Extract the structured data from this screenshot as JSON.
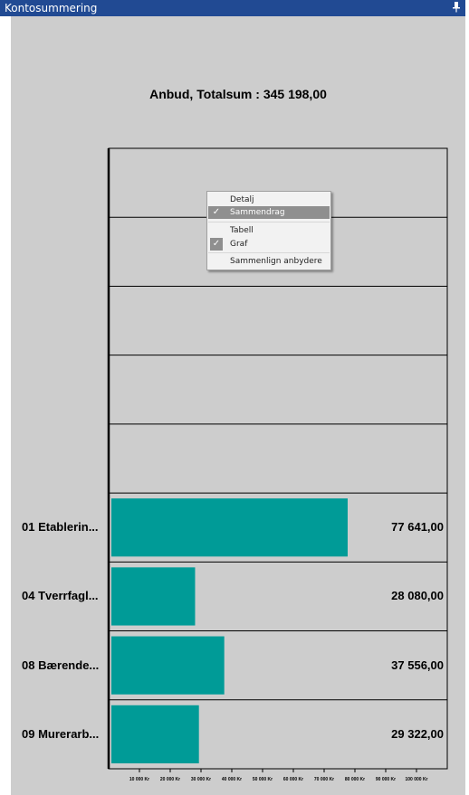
{
  "window": {
    "title": "Kontosummering",
    "pin_icon": "pin-icon"
  },
  "chart_data": {
    "type": "bar",
    "orientation": "horizontal",
    "title": "Anbud, Totalsum : 345 198,00",
    "categories": [
      "01 Etablerin...",
      "04 Tverrfagl...",
      "08 Bærende...",
      "09 Murerarb..."
    ],
    "values": [
      77641.0,
      28080.0,
      37556.0,
      29322.0
    ],
    "value_labels": [
      "77 641,00",
      "28 080,00",
      "37 556,00",
      "29 322,00"
    ],
    "x_ticks": [
      10000,
      20000,
      30000,
      40000,
      50000,
      60000,
      70000,
      80000,
      90000,
      100000
    ],
    "x_tick_labels": [
      "10 000 Kr",
      "20 000 Kr",
      "30 000 Kr",
      "40 000 Kr",
      "50 000 Kr",
      "60 000 Kr",
      "70 000 Kr",
      "80 000 Kr",
      "90 000 Kr",
      "100 000 Kr"
    ],
    "xlim": [
      0,
      110000
    ],
    "bar_color": "#009b97",
    "background": "#cdcdcd",
    "empty_rows": 5
  },
  "context_menu": {
    "items": [
      {
        "label": "Detalj",
        "checked": false,
        "highlight": false
      },
      {
        "label": "Sammendrag",
        "checked": true,
        "highlight": true
      },
      {
        "label": "Tabell",
        "checked": false,
        "highlight": false
      },
      {
        "label": "Graf",
        "checked": true,
        "highlight": false
      },
      {
        "label": "Sammenlign anbydere",
        "checked": false,
        "highlight": false
      }
    ]
  },
  "colors": {
    "titlebar": "#214a93",
    "bar": "#009b97",
    "plot_bg": "#cdcdcd"
  }
}
